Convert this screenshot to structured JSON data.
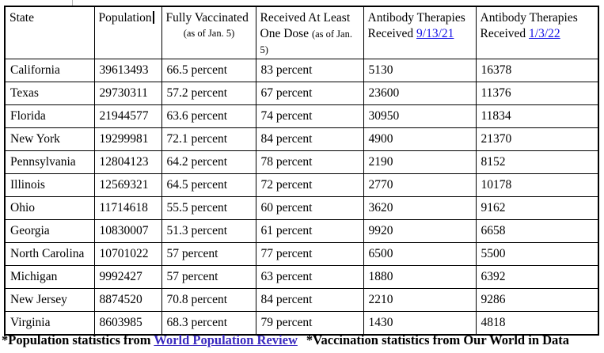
{
  "table": {
    "columns": [
      {
        "key": "state",
        "label": "State"
      },
      {
        "key": "population",
        "label": "Population"
      },
      {
        "key": "fully-vaccinated",
        "label": "Fully Vaccinated",
        "sub": "(as of Jan. 5)"
      },
      {
        "key": "one-dose",
        "label": "Received At Least One Dose",
        "sub": "(as of Jan. 5)"
      },
      {
        "key": "antibody-9-13-21",
        "label": "Antibody Therapies Received",
        "link": "9/13/21"
      },
      {
        "key": "antibody-1-3-22",
        "label": "Antibody Therapies Received",
        "link": "1/3/22"
      }
    ],
    "rows": [
      [
        "California",
        "39613493",
        "66.5 percent",
        "83 percent",
        "5130",
        "16378"
      ],
      [
        "Texas",
        "29730311",
        "57.2 percent",
        "67 percent",
        "23600",
        "11376"
      ],
      [
        "Florida",
        "21944577",
        "63.6 percent",
        "74 percent",
        "30950",
        "11834"
      ],
      [
        "New York",
        "19299981",
        "72.1 percent",
        "84 percent",
        "4900",
        "21370"
      ],
      [
        "Pennsylvania",
        "12804123",
        "64.2 percent",
        "78 percent",
        "2190",
        "8152"
      ],
      [
        "Illinois",
        "12569321",
        "64.5 percent",
        "72 percent",
        "2770",
        "10178"
      ],
      [
        "Ohio",
        "11714618",
        "55.5 percent",
        "60 percent",
        "3620",
        "9162"
      ],
      [
        "Georgia",
        "10830007",
        "51.3 percent",
        "61 percent",
        "9920",
        "6658"
      ],
      [
        "North Carolina",
        "10701022",
        "57 percent",
        "77 percent",
        "6500",
        "5500"
      ],
      [
        "Michigan",
        "9992427",
        "57 percent",
        "63 percent",
        "1880",
        "6392"
      ],
      [
        "New Jersey",
        "8874520",
        "70.8 percent",
        "84 percent",
        "2210",
        "9286"
      ],
      [
        "Virginia",
        "8603985",
        "68.3 percent",
        "79 percent",
        "1430",
        "4818"
      ]
    ]
  },
  "editor": {
    "text_cursor_visible": true,
    "text_cursor_after": "Population"
  },
  "footnotes": {
    "population_prefix": "*Population statistics from ",
    "population_link": "World Population Review",
    "vaccination": "*Vaccination statistics from Our World in Data"
  },
  "colors": {
    "header_date_link": "#1512e6",
    "footnote_link": "#3a2abf",
    "table_border": "#000000",
    "text": "#000000",
    "background": "#ffffff"
  }
}
